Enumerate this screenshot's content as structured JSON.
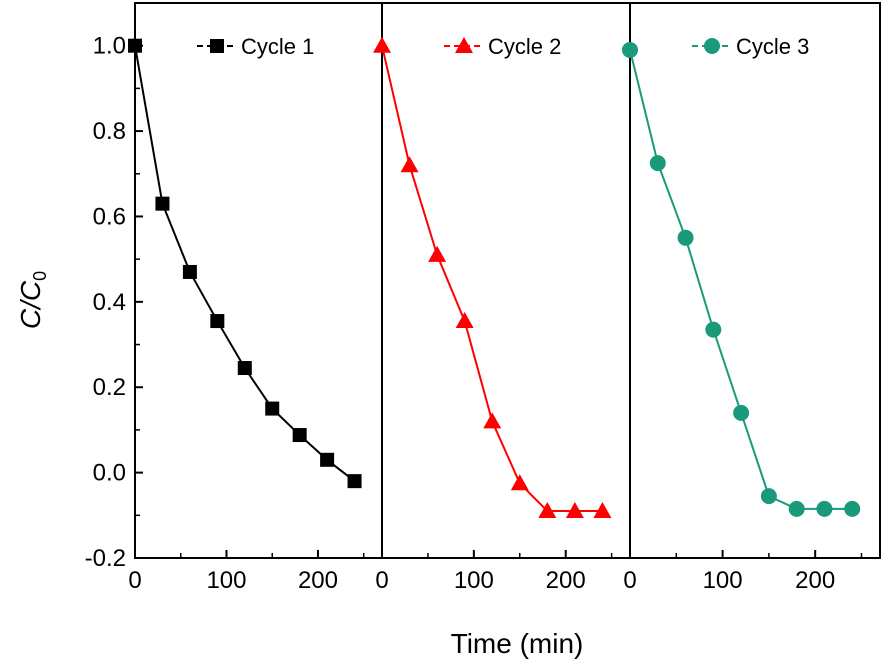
{
  "chart_data": {
    "type": "line",
    "xlabel": "Time (min)",
    "ylabel_main": "C/C",
    "ylabel_sub": "0",
    "ylim": [
      -0.2,
      1.1
    ],
    "yticks": [
      "-0.2",
      "0.0",
      "0.2",
      "0.4",
      "0.6",
      "0.8",
      "1.0"
    ],
    "ytick_values": [
      -0.2,
      0.0,
      0.2,
      0.4,
      0.6,
      0.8,
      1.0
    ],
    "xlim": [
      0,
      270
    ],
    "xticks": [
      "0",
      "100",
      "200"
    ],
    "xtick_values": [
      0,
      100,
      200
    ],
    "grid": false,
    "legend_placement": "top-right of each panel",
    "series": [
      {
        "name": "Cycle 1",
        "color": "#000000",
        "marker": "square",
        "x": [
          0,
          30,
          60,
          90,
          120,
          150,
          180,
          210,
          240
        ],
        "y": [
          1.0,
          0.63,
          0.47,
          0.355,
          0.245,
          0.15,
          0.088,
          0.03,
          -0.02
        ]
      },
      {
        "name": "Cycle 2",
        "color": "#ff0000",
        "marker": "triangle",
        "x": [
          0,
          30,
          60,
          90,
          120,
          150,
          180,
          210,
          240
        ],
        "y": [
          1.0,
          0.72,
          0.51,
          0.355,
          0.12,
          -0.025,
          -0.09,
          -0.09,
          -0.09
        ]
      },
      {
        "name": "Cycle 3",
        "color": "#1a9a7a",
        "marker": "circle",
        "x": [
          0,
          30,
          60,
          90,
          120,
          150,
          180,
          210,
          240
        ],
        "y": [
          0.99,
          0.725,
          0.55,
          0.335,
          0.14,
          -0.055,
          -0.085,
          -0.085,
          -0.085
        ]
      }
    ]
  }
}
